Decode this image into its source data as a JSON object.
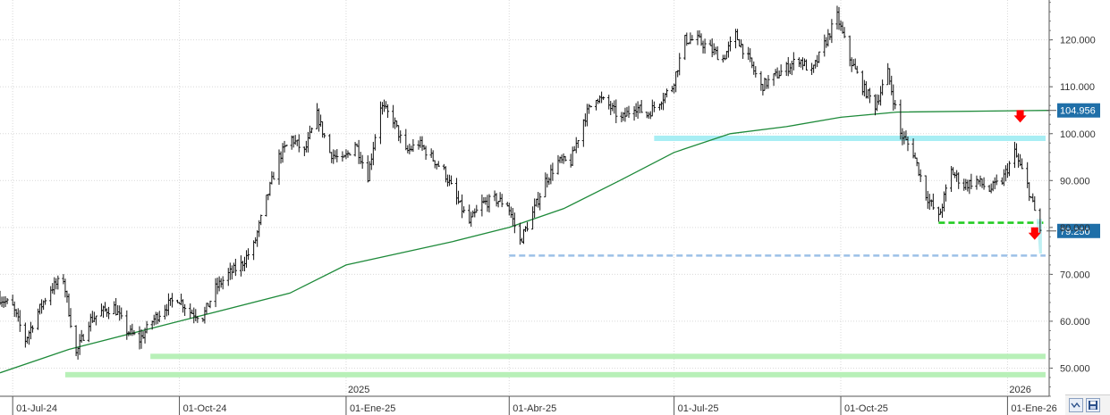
{
  "chart_data": {
    "type": "ohlc",
    "title": "",
    "xlabel": "",
    "ylabel": "",
    "x_range": [
      "2024-06-24",
      "2026-01-24"
    ],
    "ylim": [
      44.0,
      128.5
    ],
    "y_ticks": [
      "50.000",
      "60.000",
      "70.000",
      "80.000",
      "90.000",
      "100.000",
      "110.000",
      "120.000"
    ],
    "x_ticks": [
      {
        "date": "2024-07-01",
        "label": "01-Jul-24"
      },
      {
        "date": "2024-10-01",
        "label": "01-Oct-24"
      },
      {
        "date": "2025-01-01",
        "label": "01-Ene-25"
      },
      {
        "date": "2025-04-01",
        "label": "01-Abr-25"
      },
      {
        "date": "2025-07-01",
        "label": "01-Jul-25"
      },
      {
        "date": "2025-10-01",
        "label": "01-Oct-25"
      },
      {
        "date": "2026-01-01",
        "label": "01-Ene-26"
      }
    ],
    "year_markers": [
      {
        "date": "2025-01-01",
        "label": "2025"
      },
      {
        "date": "2026-01-01",
        "label": "2026"
      }
    ],
    "grid": true,
    "price_path": [
      [
        "2024-06-24",
        65
      ],
      [
        "2024-07-01",
        63
      ],
      [
        "2024-07-08",
        56
      ],
      [
        "2024-07-15",
        62
      ],
      [
        "2024-07-22",
        67
      ],
      [
        "2024-07-29",
        69
      ],
      [
        "2024-08-05",
        53
      ],
      [
        "2024-08-12",
        60
      ],
      [
        "2024-08-19",
        62
      ],
      [
        "2024-08-26",
        63
      ],
      [
        "2024-09-02",
        58
      ],
      [
        "2024-09-09",
        56
      ],
      [
        "2024-09-16",
        60
      ],
      [
        "2024-09-23",
        63
      ],
      [
        "2024-09-30",
        65
      ],
      [
        "2024-10-07",
        62
      ],
      [
        "2024-10-14",
        61
      ],
      [
        "2024-10-21",
        67
      ],
      [
        "2024-10-28",
        70
      ],
      [
        "2024-11-04",
        72
      ],
      [
        "2024-11-11",
        76
      ],
      [
        "2024-11-18",
        86
      ],
      [
        "2024-11-25",
        95
      ],
      [
        "2024-12-02",
        99
      ],
      [
        "2024-12-09",
        96
      ],
      [
        "2024-12-16",
        104
      ],
      [
        "2024-12-23",
        96
      ],
      [
        "2024-12-30",
        94
      ],
      [
        "2025-01-06",
        98
      ],
      [
        "2025-01-13",
        91
      ],
      [
        "2025-01-20",
        106
      ],
      [
        "2025-01-27",
        103
      ],
      [
        "2025-02-03",
        96
      ],
      [
        "2025-02-10",
        98
      ],
      [
        "2025-02-17",
        95
      ],
      [
        "2025-02-24",
        92
      ],
      [
        "2025-03-03",
        86
      ],
      [
        "2025-03-10",
        81
      ],
      [
        "2025-03-17",
        85
      ],
      [
        "2025-03-24",
        86
      ],
      [
        "2025-03-31",
        85
      ],
      [
        "2025-04-07",
        77
      ],
      [
        "2025-04-14",
        83
      ],
      [
        "2025-04-21",
        90
      ],
      [
        "2025-04-28",
        94
      ],
      [
        "2025-05-05",
        94
      ],
      [
        "2025-05-12",
        103
      ],
      [
        "2025-05-19",
        108
      ],
      [
        "2025-05-26",
        106
      ],
      [
        "2025-06-02",
        103
      ],
      [
        "2025-06-09",
        106
      ],
      [
        "2025-06-16",
        104
      ],
      [
        "2025-06-23",
        107
      ],
      [
        "2025-06-30",
        110
      ],
      [
        "2025-07-07",
        120
      ],
      [
        "2025-07-14",
        120
      ],
      [
        "2025-07-21",
        118
      ],
      [
        "2025-07-28",
        116
      ],
      [
        "2025-08-04",
        121
      ],
      [
        "2025-08-11",
        116
      ],
      [
        "2025-08-18",
        110
      ],
      [
        "2025-08-25",
        112
      ],
      [
        "2025-09-01",
        114
      ],
      [
        "2025-09-08",
        116
      ],
      [
        "2025-09-15",
        113
      ],
      [
        "2025-09-22",
        119
      ],
      [
        "2025-09-29",
        125
      ],
      [
        "2025-10-06",
        116
      ],
      [
        "2025-10-13",
        110
      ],
      [
        "2025-10-20",
        106
      ],
      [
        "2025-10-27",
        113
      ],
      [
        "2025-11-03",
        100
      ],
      [
        "2025-11-10",
        96
      ],
      [
        "2025-11-17",
        87
      ],
      [
        "2025-11-24",
        82
      ],
      [
        "2025-12-01",
        92
      ],
      [
        "2025-12-08",
        89
      ],
      [
        "2025-12-15",
        90
      ],
      [
        "2025-12-22",
        88
      ],
      [
        "2025-12-29",
        90
      ],
      [
        "2026-01-05",
        96
      ],
      [
        "2026-01-12",
        89
      ],
      [
        "2026-01-19",
        79.25
      ]
    ],
    "series": [
      {
        "type": "line",
        "color": "#1e8a3a",
        "points": [
          [
            "2024-06-24",
            49
          ],
          [
            "2024-08-01",
            54
          ],
          [
            "2024-10-01",
            60
          ],
          [
            "2024-12-01",
            66
          ],
          [
            "2025-01-01",
            72
          ],
          [
            "2025-03-01",
            77
          ],
          [
            "2025-04-01",
            80
          ],
          [
            "2025-05-01",
            84
          ],
          [
            "2025-06-01",
            90
          ],
          [
            "2025-07-01",
            96
          ],
          [
            "2025-08-01",
            100
          ],
          [
            "2025-09-01",
            101.5
          ],
          [
            "2025-10-01",
            103.5
          ],
          [
            "2025-11-01",
            104.6
          ],
          [
            "2026-01-24",
            104.956
          ]
        ]
      }
    ],
    "levels": [
      {
        "value": 99.0,
        "from": "2025-06-20",
        "to": "2026-01-22",
        "color": "#a8eef4",
        "style": "band"
      },
      {
        "value": 81.0,
        "from": "2025-11-24",
        "to": "2026-01-22",
        "color": "#22cc22",
        "style": "dashed"
      },
      {
        "value": 74.0,
        "from": "2025-04-01",
        "to": "2026-01-22",
        "color": "#9cc0e8",
        "style": "dashed"
      },
      {
        "value": 52.5,
        "from": "2024-09-15",
        "to": "2026-01-22",
        "color": "#b8f0b8",
        "style": "band"
      },
      {
        "value": 48.6,
        "from": "2024-07-30",
        "to": "2026-01-22",
        "color": "#b8f0b8",
        "style": "band"
      }
    ],
    "annotations": [
      {
        "type": "down-arrow",
        "date": "2026-01-08",
        "value": 103.5,
        "color": "#ff0000"
      },
      {
        "type": "down-arrow",
        "date": "2026-01-16",
        "value": 78.5,
        "color": "#ff0000"
      }
    ],
    "price_tags": [
      {
        "label": "104.956",
        "value": 104.956,
        "color": "#1f6fa8"
      },
      {
        "label": "79.250",
        "value": 79.25,
        "color": "#1f6fa8"
      }
    ]
  },
  "toolbar": {
    "zoom_icon": "zoom-fit-icon",
    "save_icon": "floppy-save-icon"
  }
}
